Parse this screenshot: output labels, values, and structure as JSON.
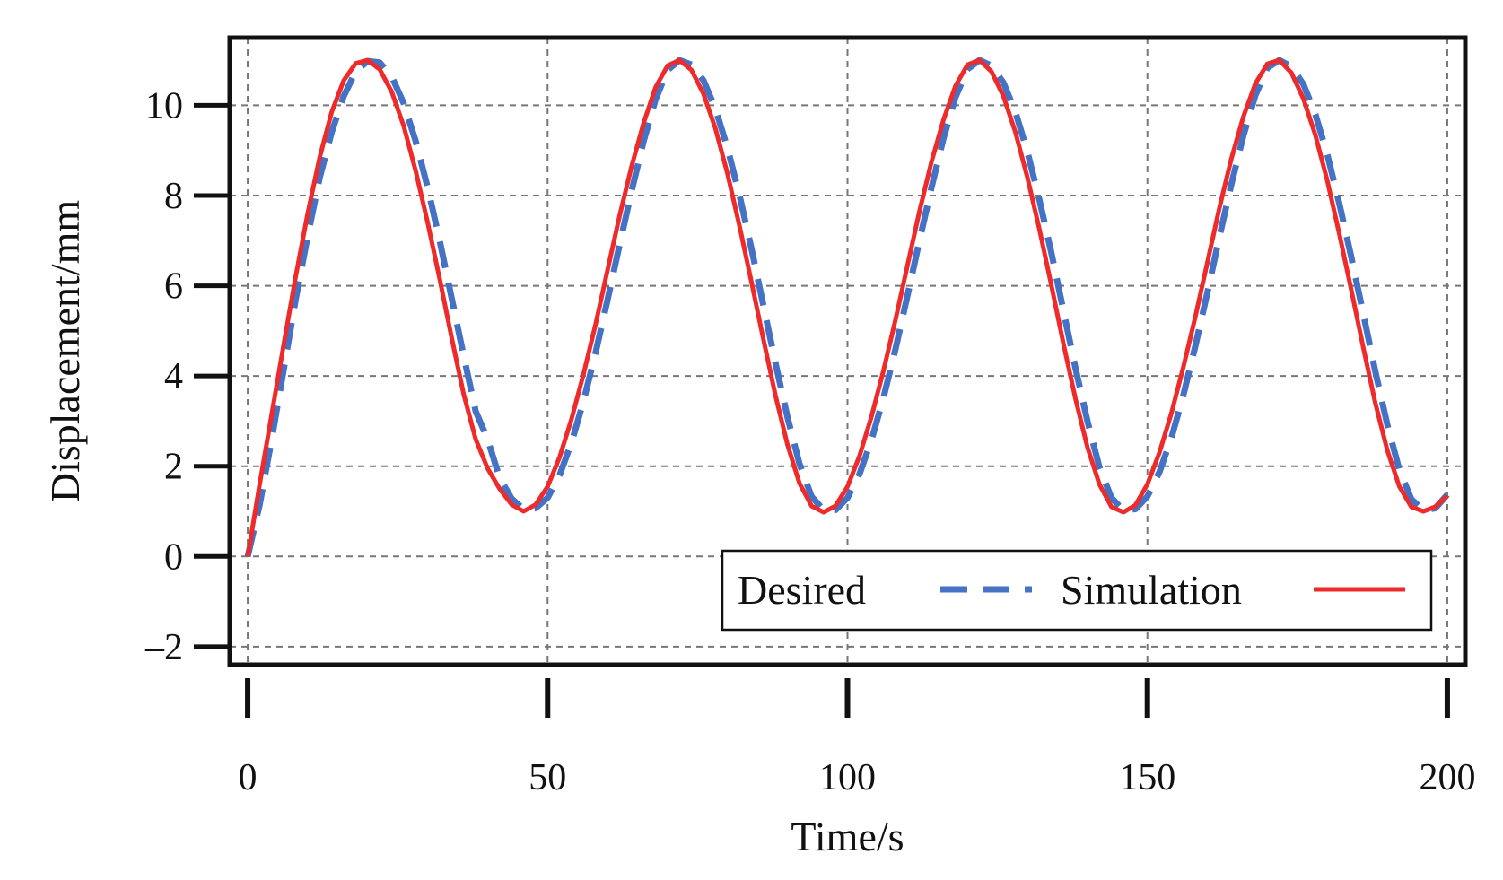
{
  "chart_data": {
    "type": "line",
    "title": "",
    "xlabel": "Time/s",
    "ylabel": "Displacement/mm",
    "xlim": [
      -3,
      203
    ],
    "ylim": [
      -2.4,
      11.5
    ],
    "xticks": [
      0,
      50,
      100,
      150,
      200
    ],
    "xtick_labels": [
      "0",
      "50",
      "100",
      "150",
      "200"
    ],
    "yticks": [
      -2,
      0,
      2,
      4,
      6,
      8,
      10
    ],
    "ytick_labels": [
      "–2",
      "0",
      "2",
      "4",
      "6",
      "8",
      "10"
    ],
    "grid": true,
    "legend_position": "bottom-right",
    "series": [
      {
        "name": "Desired",
        "color": "#4472c4",
        "style": "dashed",
        "x": [
          0,
          2,
          4,
          6,
          8,
          10,
          12,
          14,
          16,
          18,
          20,
          22,
          24,
          26,
          28,
          30,
          32,
          34,
          36,
          38,
          40,
          42,
          44,
          46,
          48,
          50,
          52,
          54,
          56,
          58,
          60,
          62,
          64,
          66,
          68,
          70,
          72,
          74,
          76,
          78,
          80,
          82,
          84,
          86,
          88,
          90,
          92,
          94,
          96,
          98,
          100,
          102,
          104,
          106,
          108,
          110,
          112,
          114,
          116,
          118,
          120,
          122,
          124,
          126,
          128,
          130,
          132,
          134,
          136,
          138,
          140,
          142,
          144,
          146,
          148,
          150,
          152,
          154,
          156,
          158,
          160,
          162,
          164,
          166,
          168,
          170,
          172,
          174,
          176,
          178,
          180,
          182,
          184,
          186,
          188,
          190,
          192,
          194,
          196,
          198,
          200
        ],
        "y": [
          0.0,
          1.15,
          2.6,
          4.15,
          5.7,
          7.1,
          8.4,
          9.4,
          10.2,
          10.75,
          10.98,
          10.95,
          10.64,
          10.05,
          9.21,
          8.18,
          7.0,
          5.73,
          4.45,
          3.22,
          2.6,
          1.74,
          1.28,
          1.05,
          1.07,
          1.3,
          1.8,
          2.53,
          3.45,
          4.52,
          5.69,
          6.91,
          8.1,
          9.2,
          10.13,
          10.78,
          11.0,
          10.9,
          10.55,
          9.92,
          9.05,
          8.0,
          6.82,
          5.55,
          4.28,
          3.08,
          2.05,
          1.33,
          1.03,
          1.03,
          1.3,
          1.83,
          2.58,
          3.52,
          4.6,
          5.78,
          7.0,
          8.18,
          9.27,
          10.18,
          10.8,
          11.0,
          10.88,
          10.5,
          9.85,
          8.97,
          7.9,
          6.72,
          5.45,
          4.18,
          3.0,
          1.98,
          1.3,
          1.02,
          1.05,
          1.33,
          1.87,
          2.63,
          3.58,
          4.67,
          5.85,
          7.08,
          8.25,
          9.33,
          10.22,
          10.83,
          11.0,
          10.86,
          10.47,
          9.8,
          8.9,
          7.82,
          6.63,
          5.37,
          4.1,
          2.92,
          1.92,
          1.27,
          1.02,
          1.07,
          1.37
        ]
      },
      {
        "name": "Simulation",
        "color": "#ee2a2a",
        "style": "solid",
        "x": [
          0,
          2,
          4,
          6,
          8,
          10,
          12,
          14,
          16,
          18,
          20,
          22,
          24,
          26,
          28,
          30,
          32,
          34,
          36,
          38,
          40,
          42,
          44,
          46,
          48,
          50,
          52,
          54,
          56,
          58,
          60,
          62,
          64,
          66,
          68,
          70,
          72,
          74,
          76,
          78,
          80,
          82,
          84,
          86,
          88,
          90,
          92,
          94,
          96,
          98,
          100,
          102,
          104,
          106,
          108,
          110,
          112,
          114,
          116,
          118,
          120,
          122,
          124,
          126,
          128,
          130,
          132,
          134,
          136,
          138,
          140,
          142,
          144,
          146,
          148,
          150,
          152,
          154,
          156,
          158,
          160,
          162,
          164,
          166,
          168,
          170,
          172,
          174,
          176,
          178,
          180,
          182,
          184,
          186,
          188,
          190,
          192,
          194,
          196,
          198,
          200
        ],
        "y": [
          0.0,
          1.6,
          3.15,
          4.7,
          6.2,
          7.6,
          8.85,
          9.85,
          10.55,
          10.93,
          11.0,
          10.8,
          10.3,
          9.55,
          8.55,
          7.4,
          6.15,
          4.85,
          3.6,
          2.6,
          1.95,
          1.5,
          1.15,
          1.0,
          1.15,
          1.55,
          2.2,
          3.05,
          4.05,
          5.15,
          6.35,
          7.55,
          8.65,
          9.6,
          10.4,
          10.88,
          11.0,
          10.78,
          10.25,
          9.48,
          8.48,
          7.32,
          6.08,
          4.8,
          3.56,
          2.47,
          1.62,
          1.12,
          0.98,
          1.12,
          1.55,
          2.23,
          3.1,
          4.12,
          5.25,
          6.45,
          7.65,
          8.75,
          9.68,
          10.43,
          10.9,
          11.0,
          10.75,
          10.2,
          9.4,
          8.4,
          7.25,
          6.0,
          4.72,
          3.5,
          2.42,
          1.6,
          1.1,
          0.98,
          1.14,
          1.6,
          2.3,
          3.18,
          4.2,
          5.32,
          6.52,
          7.72,
          8.82,
          9.75,
          10.48,
          10.92,
          11.0,
          10.72,
          10.15,
          9.34,
          8.32,
          7.15,
          5.9,
          4.62,
          3.4,
          2.35,
          1.55,
          1.1,
          1.0,
          1.1,
          1.35
        ]
      }
    ]
  }
}
